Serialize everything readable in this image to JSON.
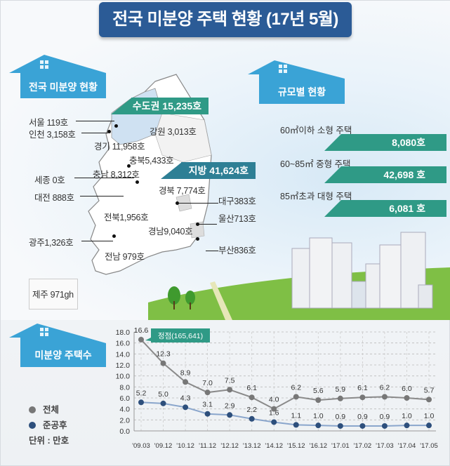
{
  "header": {
    "title": "전국 미분양 주택 현황 (17년 5월)",
    "title_bg": "#2b5b96"
  },
  "sections": {
    "national": "전국 미분양 현황",
    "by_size": "규모별 현황",
    "count": "미분양 주택수"
  },
  "map": {
    "capital_tag": "수도권 15,235호",
    "local_tag": "지방 41,624호",
    "regions": [
      {
        "name": "서울",
        "label": "서울 119호"
      },
      {
        "name": "인천",
        "label": "인천 3,158호"
      },
      {
        "name": "경기",
        "label": "경기 11,958호"
      },
      {
        "name": "강원",
        "label": "강원 3,013호"
      },
      {
        "name": "충북",
        "label": "충북5,433호"
      },
      {
        "name": "충남",
        "label": "충남 8,312호"
      },
      {
        "name": "세종",
        "label": "세종 0호"
      },
      {
        "name": "대전",
        "label": "대전 888호"
      },
      {
        "name": "경북",
        "label": "경북 7,774호"
      },
      {
        "name": "대구",
        "label": "대구383호"
      },
      {
        "name": "전북",
        "label": "전북1,956호"
      },
      {
        "name": "울산",
        "label": "울산713호"
      },
      {
        "name": "경남",
        "label": "경남9,040호"
      },
      {
        "name": "광주",
        "label": "광주1,326호"
      },
      {
        "name": "전남",
        "label": "전남 979호"
      },
      {
        "name": "부산",
        "label": "부산836호"
      },
      {
        "name": "제주",
        "label": "제주 971gh"
      }
    ]
  },
  "by_size": [
    {
      "label": "60㎡이하 소형 주택",
      "value": "8,080호"
    },
    {
      "label": "60~85㎡ 중형 주택",
      "value": "42,698 호"
    },
    {
      "label": "85㎡초과 대형 주택",
      "value": "6,081 호"
    }
  ],
  "legend": {
    "total": "전체",
    "after_completion": "준공후",
    "unit": "단위 : 만호",
    "total_color": "#777777",
    "after_color": "#2d4f7c"
  },
  "chart_data": {
    "type": "line",
    "title": "미분양 주택수",
    "xlabel": "",
    "ylabel": "단위: 만호",
    "ylim": [
      0,
      18
    ],
    "yticks": [
      "0.0",
      "2.0",
      "4.0",
      "6.0",
      "8.0",
      "10.0",
      "12.0",
      "14.0",
      "16.0",
      "18.0"
    ],
    "grid": true,
    "categories": [
      "'09.03",
      "'09.12",
      "'10.12",
      "'11.12",
      "'12.12",
      "'13.12",
      "'14.12",
      "'15.12",
      "'16.12",
      "'17.01",
      "'17.02",
      "'17.03",
      "'17.04",
      "'17.05"
    ],
    "series": [
      {
        "name": "전체",
        "color": "#777777",
        "values": [
          16.6,
          12.3,
          8.9,
          7.0,
          7.5,
          6.1,
          4.0,
          6.2,
          5.6,
          5.9,
          6.1,
          6.2,
          6.0,
          5.7
        ]
      },
      {
        "name": "준공후",
        "color": "#2d4f7c",
        "values": [
          5.2,
          5.0,
          4.3,
          3.1,
          2.9,
          2.2,
          1.6,
          1.1,
          1.0,
          0.9,
          0.9,
          0.9,
          1.0,
          1.0
        ]
      }
    ],
    "annotations": [
      {
        "text": "정점(165,641)",
        "x": "'09.03",
        "series": "전체"
      }
    ]
  }
}
